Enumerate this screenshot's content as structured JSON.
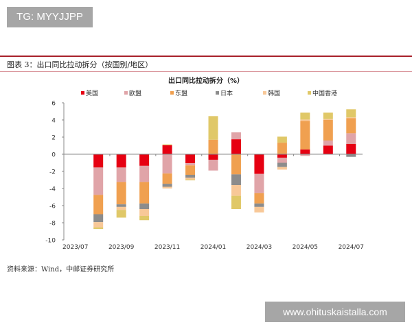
{
  "watermark_top": "TG: MYYJJPP",
  "watermark_bottom": "www.ohituskaistalla.com",
  "figure_title": "图表 3：出口同比拉动拆分（按国别/地区）",
  "source": "资料来源：Wind，中邮证券研究所",
  "chart_data": {
    "type": "bar",
    "stacked": true,
    "title": "出口同比拉动拆分（%）",
    "categories": [
      "2023/07",
      "2023/08",
      "2023/09",
      "2023/10",
      "2023/11",
      "2023/12",
      "2024/01",
      "2024/02",
      "2024/03",
      "2024/04",
      "2024/05",
      "2024/06",
      "2024/07"
    ],
    "tick_labels": [
      "2023/07",
      "2023/09",
      "2023/11",
      "2024/01",
      "2024/03",
      "2024/05",
      "2024/07"
    ],
    "ylim": [
      -10,
      6
    ],
    "yticks": [
      -10,
      -8,
      -6,
      -4,
      -2,
      0,
      2,
      4,
      6
    ],
    "legend_position": "top",
    "grid": false,
    "series": [
      {
        "name": "美国",
        "color": "#e60012",
        "values": [
          null,
          -1.55,
          -1.55,
          -1.35,
          1.05,
          -1.05,
          -0.65,
          1.75,
          -2.3,
          -0.4,
          0.55,
          1.0,
          1.2
        ]
      },
      {
        "name": "欧盟",
        "color": "#e0a4a8",
        "values": [
          null,
          -3.2,
          -1.7,
          -1.9,
          -2.25,
          -0.25,
          -1.25,
          0.8,
          -2.25,
          -0.6,
          -0.2,
          0.6,
          1.25
        ]
      },
      {
        "name": "东盟",
        "color": "#f0a050",
        "values": [
          null,
          -2.25,
          -2.6,
          -2.5,
          -1.2,
          -1.1,
          1.7,
          -2.35,
          -1.2,
          1.35,
          3.35,
          2.4,
          1.75
        ]
      },
      {
        "name": "日本",
        "color": "#8c8c8c",
        "values": [
          null,
          -0.93,
          -0.3,
          -0.65,
          -0.35,
          -0.35,
          0,
          -1.25,
          -0.4,
          -0.5,
          0,
          0,
          -0.3
        ]
      },
      {
        "name": "韩国",
        "color": "#f8c898",
        "values": [
          null,
          -0.6,
          -0.35,
          -0.8,
          -0.2,
          -0.2,
          0,
          -1.25,
          -0.65,
          -0.3,
          0.15,
          0.1,
          0.1
        ]
      },
      {
        "name": "中国香港",
        "color": "#e0c868",
        "values": [
          null,
          -0.2,
          -0.9,
          -0.5,
          0.1,
          -0.1,
          2.75,
          -1.55,
          0,
          0.7,
          0.8,
          0.75,
          0.95
        ]
      }
    ]
  }
}
